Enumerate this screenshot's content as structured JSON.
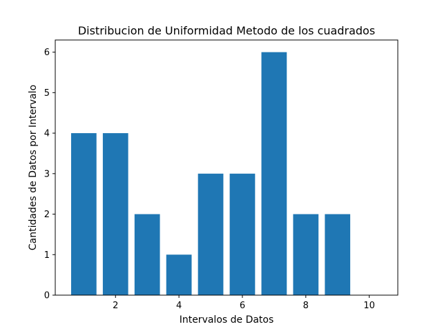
{
  "chart_data": {
    "type": "bar",
    "title": "Distribucion de Uniformidad Metodo de los cuadrados",
    "xlabel": "Intervalos de Datos",
    "ylabel": "Cantidades de Datos por Intervalo",
    "x": [
      1,
      2,
      3,
      4,
      5,
      6,
      7,
      8,
      9
    ],
    "values": [
      4,
      4,
      2,
      1,
      3,
      3,
      6,
      2,
      2
    ],
    "xlim": [
      0.1,
      10.9
    ],
    "ylim": [
      0,
      6.3
    ],
    "xticks": [
      "2",
      "4",
      "6",
      "8",
      "10"
    ],
    "yticks": [
      "0",
      "1",
      "2",
      "3",
      "4",
      "5",
      "6"
    ],
    "bar_color": "#1f77b4",
    "grid": false,
    "legend": "none"
  }
}
